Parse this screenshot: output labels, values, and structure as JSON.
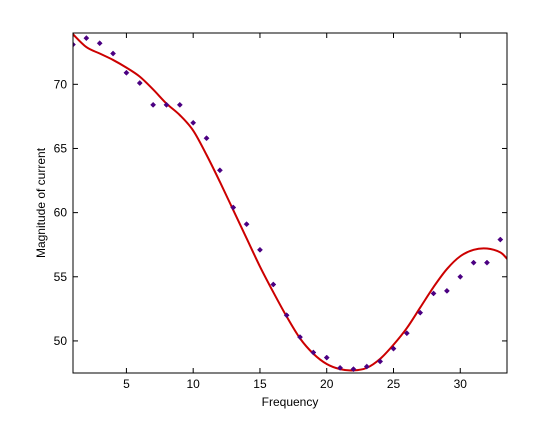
{
  "chart_data": {
    "type": "scatter",
    "title": "",
    "xlabel": "Frequency",
    "ylabel": "Magnitude of current",
    "xlim": [
      1,
      33.5
    ],
    "ylim": [
      47.5,
      74
    ],
    "x_ticks": [
      5,
      10,
      15,
      20,
      25,
      30
    ],
    "y_ticks": [
      50,
      55,
      60,
      65,
      70
    ],
    "grid": false,
    "legend": "none",
    "series": [
      {
        "kind": "scatter",
        "color": "#4b0082",
        "marker": "diamond",
        "x": [
          1,
          2,
          3,
          4,
          5,
          6,
          7,
          8,
          9,
          10,
          11,
          12,
          13,
          14,
          15,
          16,
          17,
          18,
          19,
          20,
          21,
          22,
          23,
          24,
          25,
          26,
          27,
          28,
          29,
          30,
          31,
          32,
          33
        ],
        "y": [
          73.1,
          73.6,
          73.2,
          72.4,
          70.9,
          70.1,
          68.4,
          68.4,
          68.4,
          67.0,
          65.8,
          63.3,
          60.4,
          59.1,
          57.1,
          54.4,
          52.0,
          50.3,
          49.1,
          48.7,
          47.9,
          47.8,
          48.0,
          48.4,
          49.4,
          50.6,
          52.2,
          53.7,
          53.9,
          55.0,
          56.1,
          56.1,
          57.9
        ]
      },
      {
        "kind": "line",
        "color": "#cc0000",
        "x": [
          1,
          2,
          3,
          4,
          5,
          6,
          7,
          8,
          9,
          10,
          11,
          12,
          13,
          14,
          15,
          16,
          17,
          18,
          19,
          20,
          21,
          22,
          23,
          24,
          25,
          26,
          27,
          28,
          29,
          30,
          31,
          32,
          33,
          33.5
        ],
        "y": [
          73.9,
          72.9,
          72.4,
          71.9,
          71.3,
          70.6,
          69.6,
          68.5,
          67.6,
          66.4,
          64.5,
          62.4,
          60.2,
          58.0,
          55.8,
          53.8,
          51.9,
          50.2,
          49.0,
          48.2,
          47.8,
          47.7,
          47.9,
          48.6,
          49.7,
          51.0,
          52.6,
          54.2,
          55.6,
          56.6,
          57.1,
          57.2,
          56.9,
          56.4
        ]
      }
    ]
  }
}
